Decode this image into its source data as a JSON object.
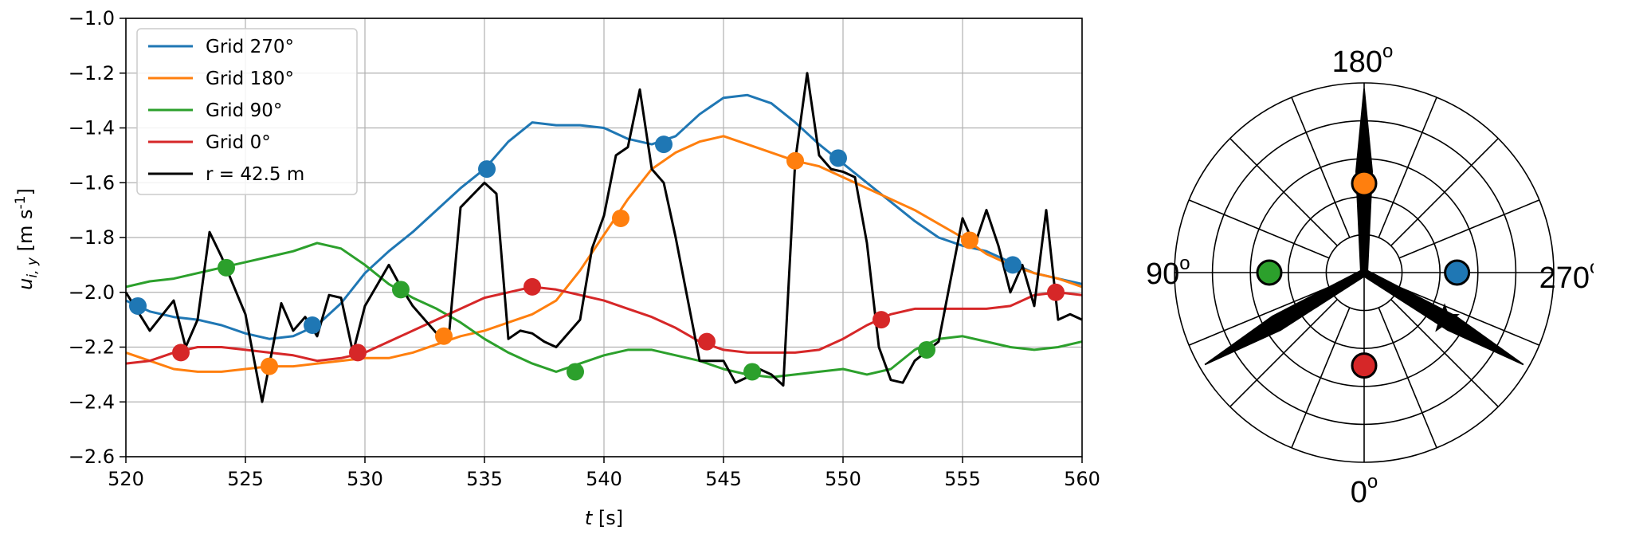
{
  "chart_data": [
    {
      "type": "line",
      "xlabel_var": "t",
      "xlabel_unit": "[s]",
      "ylabel_var": "u",
      "ylabel_sub": "i, y",
      "ylabel_unit": "[m s",
      "ylabel_exp": "-1",
      "ylabel_close": "]",
      "xlim": [
        520,
        560
      ],
      "ylim": [
        -2.6,
        -1.0
      ],
      "xticks": [
        520,
        525,
        530,
        535,
        540,
        545,
        550,
        555,
        560
      ],
      "yticks": [
        -2.6,
        -2.4,
        -2.2,
        -2.0,
        -1.8,
        -1.6,
        -1.4,
        -1.2,
        -1.0
      ],
      "xtick_labels": [
        "520",
        "525",
        "530",
        "535",
        "540",
        "545",
        "550",
        "555",
        "560"
      ],
      "ytick_labels": [
        "−2.6",
        "−2.4",
        "−2.2",
        "−2.0",
        "−1.8",
        "−1.6",
        "−1.4",
        "−1.2",
        "−1.0"
      ],
      "grid": true,
      "legend_position": "top-left",
      "series": [
        {
          "name": "Grid 270°",
          "color": "#1f77b4",
          "x": [
            520,
            521,
            522,
            523,
            524,
            525,
            526,
            527,
            528,
            529,
            530,
            531,
            532,
            533,
            534,
            535,
            536,
            537,
            538,
            539,
            540,
            541,
            542,
            543,
            544,
            545,
            546,
            547,
            548,
            549,
            550,
            551,
            552,
            553,
            554,
            555,
            556,
            557,
            558,
            559,
            560
          ],
          "y": [
            -2.03,
            -2.07,
            -2.09,
            -2.1,
            -2.12,
            -2.15,
            -2.17,
            -2.16,
            -2.12,
            -2.04,
            -1.93,
            -1.85,
            -1.78,
            -1.7,
            -1.62,
            -1.55,
            -1.45,
            -1.38,
            -1.39,
            -1.39,
            -1.4,
            -1.44,
            -1.46,
            -1.43,
            -1.35,
            -1.29,
            -1.28,
            -1.31,
            -1.38,
            -1.46,
            -1.53,
            -1.6,
            -1.67,
            -1.74,
            -1.8,
            -1.83,
            -1.85,
            -1.89,
            -1.93,
            -1.95,
            -1.97
          ],
          "markers": [
            {
              "x": 520.5,
              "y": -2.05
            },
            {
              "x": 527.8,
              "y": -2.12
            },
            {
              "x": 535.1,
              "y": -1.55
            },
            {
              "x": 542.5,
              "y": -1.46
            },
            {
              "x": 549.8,
              "y": -1.51
            },
            {
              "x": 557.1,
              "y": -1.9
            }
          ]
        },
        {
          "name": "Grid 180°",
          "color": "#ff7f0e",
          "x": [
            520,
            521,
            522,
            523,
            524,
            525,
            526,
            527,
            528,
            529,
            530,
            531,
            532,
            533,
            534,
            535,
            536,
            537,
            538,
            539,
            540,
            541,
            542,
            543,
            544,
            545,
            546,
            547,
            548,
            549,
            550,
            551,
            552,
            553,
            554,
            555,
            556,
            557,
            558,
            559,
            560
          ],
          "y": [
            -2.22,
            -2.25,
            -2.28,
            -2.29,
            -2.29,
            -2.28,
            -2.27,
            -2.27,
            -2.26,
            -2.25,
            -2.24,
            -2.24,
            -2.22,
            -2.19,
            -2.16,
            -2.14,
            -2.11,
            -2.08,
            -2.03,
            -1.92,
            -1.79,
            -1.66,
            -1.55,
            -1.49,
            -1.45,
            -1.43,
            -1.46,
            -1.49,
            -1.52,
            -1.54,
            -1.58,
            -1.62,
            -1.66,
            -1.7,
            -1.75,
            -1.8,
            -1.86,
            -1.9,
            -1.93,
            -1.95,
            -1.98
          ],
          "markers": [
            {
              "x": 526.0,
              "y": -2.27
            },
            {
              "x": 533.3,
              "y": -2.16
            },
            {
              "x": 540.7,
              "y": -1.73
            },
            {
              "x": 548.0,
              "y": -1.52
            },
            {
              "x": 555.3,
              "y": -1.81
            }
          ]
        },
        {
          "name": "Grid 90°",
          "color": "#2ca02c",
          "x": [
            520,
            521,
            522,
            523,
            524,
            525,
            526,
            527,
            528,
            529,
            530,
            531,
            532,
            533,
            534,
            535,
            536,
            537,
            538,
            539,
            540,
            541,
            542,
            543,
            544,
            545,
            546,
            547,
            548,
            549,
            550,
            551,
            552,
            553,
            554,
            555,
            556,
            557,
            558,
            559,
            560
          ],
          "y": [
            -1.98,
            -1.96,
            -1.95,
            -1.93,
            -1.91,
            -1.89,
            -1.87,
            -1.85,
            -1.82,
            -1.84,
            -1.9,
            -1.97,
            -2.02,
            -2.06,
            -2.11,
            -2.17,
            -2.22,
            -2.26,
            -2.29,
            -2.26,
            -2.23,
            -2.21,
            -2.21,
            -2.23,
            -2.25,
            -2.28,
            -2.3,
            -2.31,
            -2.3,
            -2.29,
            -2.28,
            -2.3,
            -2.28,
            -2.21,
            -2.17,
            -2.16,
            -2.18,
            -2.2,
            -2.21,
            -2.2,
            -2.18
          ],
          "markers": [
            {
              "x": 524.2,
              "y": -1.91
            },
            {
              "x": 531.5,
              "y": -1.99
            },
            {
              "x": 538.8,
              "y": -2.29
            },
            {
              "x": 546.2,
              "y": -2.29
            },
            {
              "x": 553.5,
              "y": -2.21
            }
          ]
        },
        {
          "name": "Grid 0°",
          "color": "#d62728",
          "x": [
            520,
            521,
            522,
            523,
            524,
            525,
            526,
            527,
            528,
            529,
            530,
            531,
            532,
            533,
            534,
            535,
            536,
            537,
            538,
            539,
            540,
            541,
            542,
            543,
            544,
            545,
            546,
            547,
            548,
            549,
            550,
            551,
            552,
            553,
            554,
            555,
            556,
            557,
            558,
            559,
            560
          ],
          "y": [
            -2.26,
            -2.25,
            -2.22,
            -2.2,
            -2.2,
            -2.21,
            -2.22,
            -2.23,
            -2.25,
            -2.24,
            -2.22,
            -2.18,
            -2.14,
            -2.1,
            -2.06,
            -2.02,
            -2.0,
            -1.98,
            -1.99,
            -2.01,
            -2.03,
            -2.06,
            -2.09,
            -2.13,
            -2.18,
            -2.21,
            -2.22,
            -2.22,
            -2.22,
            -2.21,
            -2.17,
            -2.12,
            -2.08,
            -2.06,
            -2.06,
            -2.06,
            -2.06,
            -2.05,
            -2.01,
            -2.0,
            -2.01
          ],
          "markers": [
            {
              "x": 522.3,
              "y": -2.22
            },
            {
              "x": 529.7,
              "y": -2.22
            },
            {
              "x": 537.0,
              "y": -1.98
            },
            {
              "x": 544.3,
              "y": -2.18
            },
            {
              "x": 551.6,
              "y": -2.1
            },
            {
              "x": 558.9,
              "y": -2.0
            }
          ]
        },
        {
          "name": "r = 42.5 m",
          "color": "#000000",
          "x": [
            520,
            521,
            522,
            522.5,
            523,
            523.5,
            524,
            525,
            525.7,
            526.5,
            527,
            527.5,
            528,
            528.5,
            529,
            529.5,
            530,
            531,
            531.5,
            532,
            533,
            533.5,
            534,
            535,
            535.5,
            536,
            536.5,
            537,
            537.5,
            538,
            539,
            539.5,
            540,
            540.5,
            541,
            541.5,
            542,
            542.5,
            543,
            544,
            545,
            545.5,
            546,
            546.5,
            547,
            547.5,
            548,
            548.5,
            549,
            549.5,
            550,
            550.5,
            551,
            551.5,
            552,
            552.5,
            553,
            554,
            555,
            555.5,
            556,
            556.5,
            557,
            557.5,
            558,
            558.5,
            559,
            559.5,
            560
          ],
          "y": [
            -2.0,
            -2.14,
            -2.03,
            -2.2,
            -2.1,
            -1.78,
            -1.87,
            -2.08,
            -2.4,
            -2.04,
            -2.14,
            -2.09,
            -2.16,
            -2.01,
            -2.02,
            -2.22,
            -2.05,
            -1.9,
            -1.98,
            -2.05,
            -2.15,
            -2.17,
            -1.69,
            -1.6,
            -1.64,
            -2.17,
            -2.14,
            -2.15,
            -2.18,
            -2.2,
            -2.1,
            -1.84,
            -1.72,
            -1.5,
            -1.47,
            -1.26,
            -1.55,
            -1.6,
            -1.8,
            -2.25,
            -2.25,
            -2.33,
            -2.31,
            -2.28,
            -2.3,
            -2.34,
            -1.52,
            -1.2,
            -1.5,
            -1.55,
            -1.56,
            -1.58,
            -1.82,
            -2.2,
            -2.32,
            -2.33,
            -2.25,
            -2.18,
            -1.73,
            -1.83,
            -1.7,
            -1.83,
            -2.0,
            -1.9,
            -2.05,
            -1.7,
            -2.1,
            -2.08,
            -2.1
          ]
        }
      ]
    },
    {
      "type": "polar",
      "labels": {
        "top": "180",
        "left": "90",
        "right": "270",
        "bottom": "0",
        "degree_symbol": "o"
      },
      "rings": 5,
      "spokes_deg_step": 22.5,
      "blades_clock_deg": [
        0,
        120,
        240
      ],
      "markers": [
        {
          "grid": "180",
          "color": "#ff7f0e",
          "clock_deg": 0,
          "radius_frac": 0.47
        },
        {
          "grid": "90",
          "color": "#2ca02c",
          "clock_deg": 270,
          "radius_frac": 0.5
        },
        {
          "grid": "270",
          "color": "#1f77b4",
          "clock_deg": 90,
          "radius_frac": 0.49
        },
        {
          "grid": "0",
          "color": "#d62728",
          "clock_deg": 180,
          "radius_frac": 0.49
        }
      ],
      "star": {
        "clock_deg": 120,
        "radius_frac": 0.49
      }
    }
  ]
}
